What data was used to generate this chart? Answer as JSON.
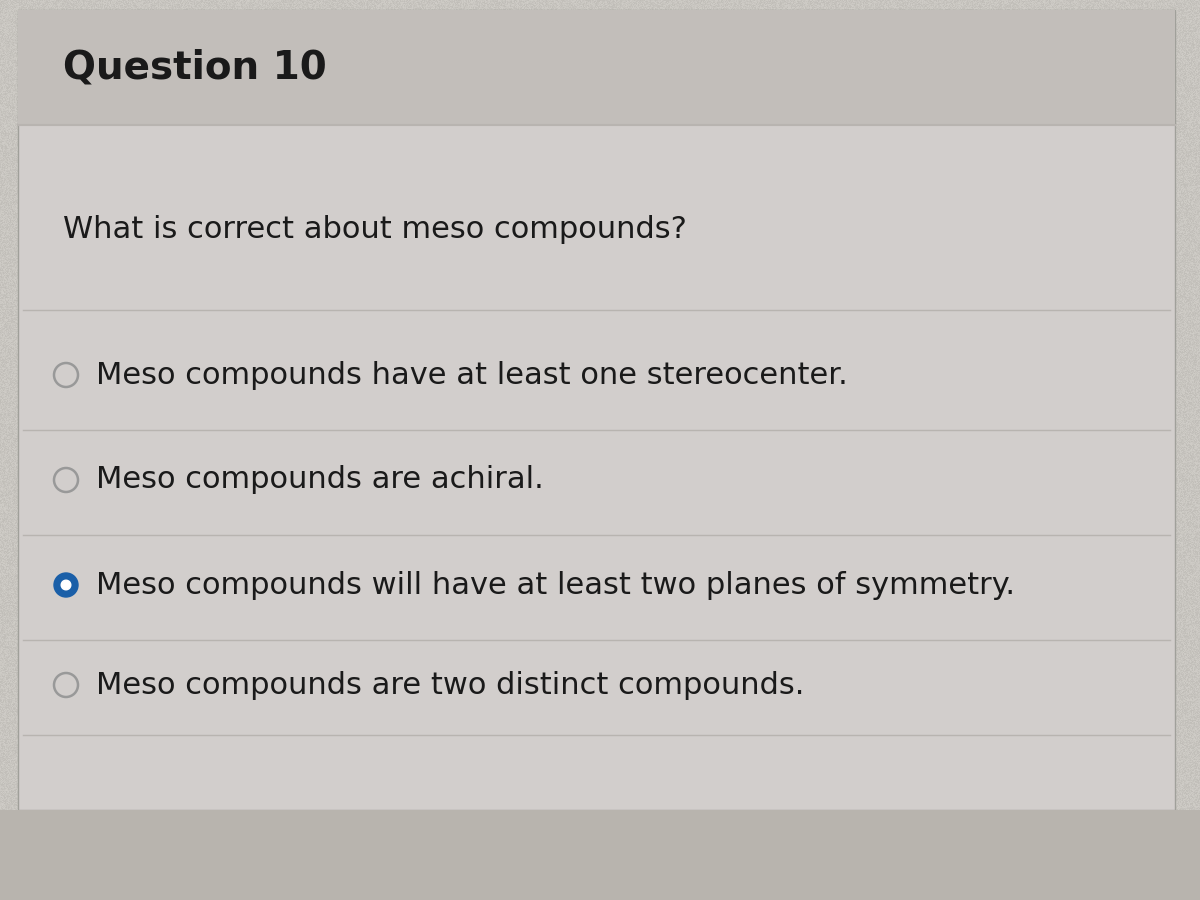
{
  "title": "Question 10",
  "question": "What is correct about meso compounds?",
  "options": [
    "Meso compounds have at least one stereocenter.",
    "Meso compounds are achiral.",
    "Meso compounds will have at least two planes of symmetry.",
    "Meso compounds are two distinct compounds."
  ],
  "selected_index": 2,
  "bg_color": "#c8c5c0",
  "content_bg": "#d2cecc",
  "header_bg": "#c2beba",
  "title_color": "#1a1a1a",
  "question_color": "#1a1a1a",
  "option_color": "#1a1a1a",
  "radio_unselected_color": "#999999",
  "radio_selected_color": "#1a5fa8",
  "divider_color": "#b8b4b0",
  "title_fontsize": 28,
  "question_fontsize": 22,
  "option_fontsize": 22,
  "bottom_bar_color": "#b8b4ae"
}
